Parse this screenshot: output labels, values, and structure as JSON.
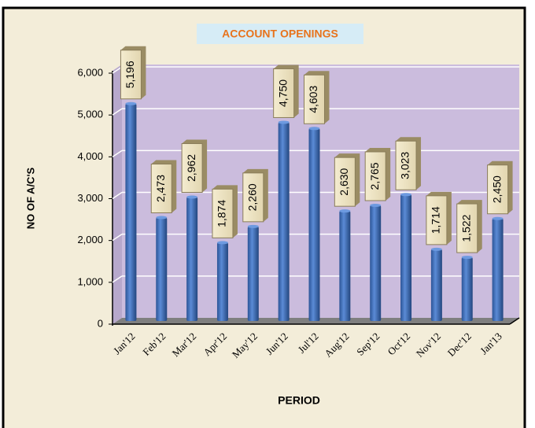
{
  "chart_data": {
    "type": "bar",
    "title": "ACCOUNT OPENINGS",
    "x_label": "PERIOD",
    "y_label": "NO OF A/C'S",
    "categories": [
      "Jan'12",
      "Feb'12",
      "Mar'12",
      "Apr'12",
      "May'12",
      "Jun'12",
      "Jul'12",
      "Aug'12",
      "Sep'12",
      "Oct'12",
      "Nov'12",
      "Dec'12",
      "Jan'13"
    ],
    "values": [
      5196,
      2473,
      2962,
      1874,
      2260,
      4750,
      4603,
      2630,
      2765,
      3023,
      1714,
      1522,
      2450
    ],
    "value_labels": [
      "5,196",
      "2,473",
      "2,962",
      "1,874",
      "2,260",
      "4,750",
      "4,603",
      "2,630",
      "2,765",
      "3,023",
      "1,714",
      "1,522",
      "2,450"
    ],
    "color": "#3d6bb3",
    "ylim": [
      0,
      6000
    ],
    "yticks": [
      0,
      {
        "value": 1000,
        "label": "1,000"
      },
      {
        "value": 2000,
        "label": "2,000"
      },
      {
        "value": 3000,
        "label": "3,000"
      },
      {
        "value": 4000,
        "label": "4,000"
      },
      {
        "value": 5000,
        "label": "5,000"
      },
      {
        "value": 6000,
        "label": "6,000"
      }
    ],
    "grid": true
  }
}
